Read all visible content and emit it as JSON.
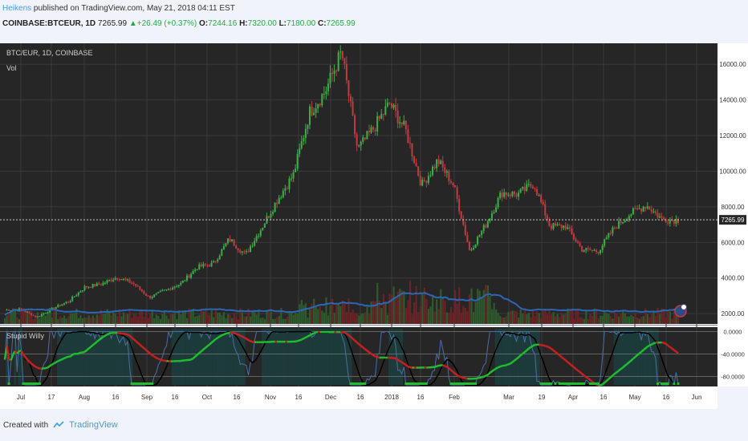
{
  "header": {
    "author": "Heikens",
    "published": "published on TradingView.com, May 21, 2018 04:11 EST"
  },
  "ticker": {
    "symbol": "COINBASE:BTCEUR, 1D",
    "last": "7265.99",
    "change": "+26.49 (+0.37%)",
    "o_label": "O:",
    "o": "7244.16",
    "h_label": "H:",
    "h": "7320.00",
    "l_label": "L:",
    "l": "7180.00",
    "c_label": "C:",
    "c": "7265.99"
  },
  "pane_labels": {
    "main": "BTC/EUR, 1D, COINBASE",
    "volume": "Vol",
    "indicator": "Stupid Willy"
  },
  "footer": {
    "created": "Created with",
    "brand": "TradingView"
  },
  "colors": {
    "background": "#262626",
    "grid": "#3a3a3a",
    "up": "#3fae49",
    "down": "#c13c40",
    "volume_ma": "#2c67b5",
    "indicator_up": "#1fbf2f",
    "indicator_down": "#c82020",
    "indicator_signal": "#000000",
    "indicator_raw": "#4a6fa5",
    "accent": "#3fa0dc"
  },
  "chart_data": {
    "type": "line",
    "title": "BTC/EUR, 1D, COINBASE",
    "y_axis_right": true,
    "ylim": [
      1600,
      17000
    ],
    "yticks": [
      2000,
      4000,
      6000,
      8000,
      10000,
      12000,
      14000,
      16000
    ],
    "ytick_labels": [
      "2000.00",
      "4000.00",
      "6000.00",
      "8000.00",
      "10000.00",
      "12000.00",
      "14000.00",
      "16000.00"
    ],
    "last_price_label": "7265.99",
    "last_price": 7265.99,
    "x_tick_labels": [
      "Jul",
      "17",
      "Aug",
      "16",
      "Sep",
      "16",
      "Oct",
      "16",
      "Nov",
      "16",
      "Dec",
      "16",
      "2018",
      "16",
      "Feb",
      "Mar",
      "19",
      "Apr",
      "16",
      "May",
      "16",
      "Jun"
    ],
    "x_tick_positions": [
      26,
      64,
      105,
      144,
      183,
      218,
      258,
      295,
      337,
      372,
      412,
      449,
      488,
      524,
      566,
      634,
      675,
      714,
      752,
      791,
      830,
      868
    ],
    "price_series": [
      [
        "Jun 25",
        2200
      ],
      [
        "Jul 5",
        2250
      ],
      [
        "Jul 15",
        1800
      ],
      [
        "Jul 25",
        2300
      ],
      [
        "Aug 5",
        2700
      ],
      [
        "Aug 15",
        3500
      ],
      [
        "Aug 25",
        3650
      ],
      [
        "Sep 1",
        4050
      ],
      [
        "Sep 10",
        3700
      ],
      [
        "Sep 15",
        2900
      ],
      [
        "Sep 25",
        3300
      ],
      [
        "Oct 5",
        3700
      ],
      [
        "Oct 15",
        4600
      ],
      [
        "Oct 25",
        4800
      ],
      [
        "Nov 5",
        6200
      ],
      [
        "Nov 12",
        5300
      ],
      [
        "Nov 20",
        6800
      ],
      [
        "Nov 28",
        8400
      ],
      [
        "Dec 5",
        9800
      ],
      [
        "Dec 8",
        13300
      ],
      [
        "Dec 12",
        14500
      ],
      [
        "Dec 17",
        16700
      ],
      [
        "Dec 22",
        11200
      ],
      [
        "Dec 28",
        12400
      ],
      [
        "Jan 5",
        13800
      ],
      [
        "Jan 10",
        12300
      ],
      [
        "Jan 16",
        9200
      ],
      [
        "Jan 20",
        10600
      ],
      [
        "Jan 28",
        9200
      ],
      [
        "Feb 5",
        5500
      ],
      [
        "Feb 10",
        7000
      ],
      [
        "Feb 20",
        8800
      ],
      [
        "Mar 1",
        8700
      ],
      [
        "Mar 5",
        9300
      ],
      [
        "Mar 15",
        6900
      ],
      [
        "Mar 25",
        6900
      ],
      [
        "Apr 1",
        5600
      ],
      [
        "Apr 10",
        5500
      ],
      [
        "Apr 18",
        6800
      ],
      [
        "Apr 25",
        7600
      ],
      [
        "May 5",
        8100
      ],
      [
        "May 12",
        7300
      ],
      [
        "May 21",
        7266
      ]
    ],
    "volume_ma_series_level": "low",
    "indicator": {
      "name": "Stupid Willy",
      "yticks": [
        -40,
        -80
      ],
      "ytick_labels": [
        "-40.0000",
        "-80.0000"
      ],
      "top_label": "0.0000",
      "ylim": [
        -95,
        5
      ]
    }
  }
}
